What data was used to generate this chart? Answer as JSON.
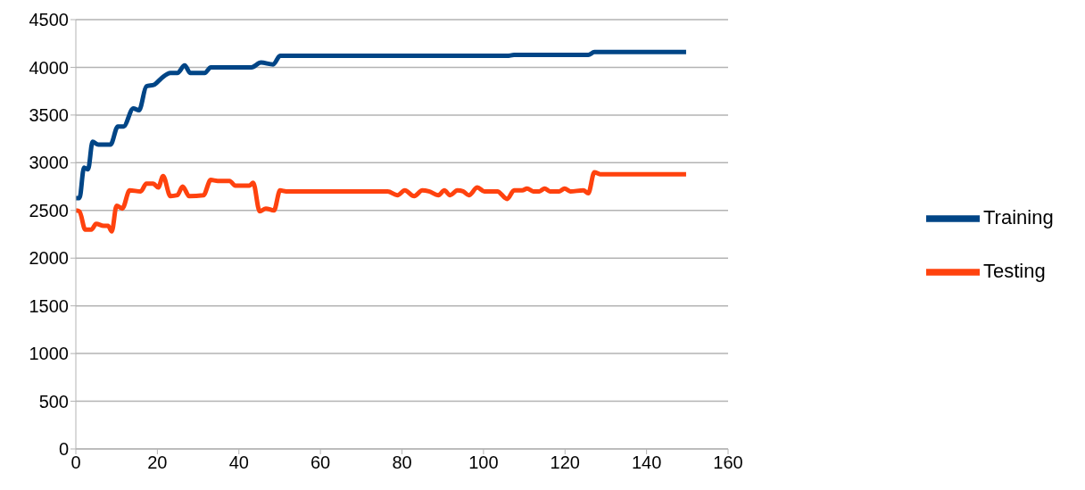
{
  "chart_data": {
    "type": "line",
    "xlim": [
      0,
      160
    ],
    "xticks": [
      0,
      20,
      40,
      60,
      80,
      100,
      120,
      140,
      160
    ],
    "ylim": [
      0,
      4500
    ],
    "yticks": [
      0,
      500,
      1000,
      1500,
      2000,
      2500,
      3000,
      3500,
      4000,
      4500
    ],
    "grid": "y",
    "legend": "right",
    "marker": "none",
    "line_style": "solid",
    "series": [
      {
        "name": "Training",
        "color": "#004586",
        "x": [
          0,
          0.9,
          2,
          3,
          4.1,
          5.5,
          7,
          8.5,
          10.3,
          11.7,
          14.1,
          15.5,
          17.3,
          19.3,
          21.1,
          23.2,
          24.9,
          26.7,
          28.1,
          31.6,
          33.1,
          43.1,
          45.4,
          48.4,
          50.1,
          60,
          80,
          100,
          105.8,
          107.5,
          125.7,
          127.2,
          149.7
        ],
        "values": [
          2630,
          2630,
          2950,
          2930,
          3220,
          3190,
          3190,
          3190,
          3380,
          3380,
          3570,
          3550,
          3800,
          3820,
          3890,
          3940,
          3940,
          4020,
          3940,
          3940,
          4000,
          4000,
          4050,
          4030,
          4120,
          4120,
          4120,
          4120,
          4120,
          4130,
          4130,
          4160,
          4160
        ]
      },
      {
        "name": "Testing",
        "color": "#ff420e",
        "x": [
          0,
          0.9,
          2.3,
          3.8,
          5,
          6.8,
          7.9,
          8.8,
          10,
          11.4,
          13.2,
          15.9,
          17.3,
          19,
          20.2,
          21.4,
          23.2,
          24.9,
          26.2,
          27.8,
          31.3,
          33.1,
          34.8,
          37.7,
          39.1,
          42.6,
          43.5,
          45.1,
          46.6,
          48.6,
          50.1,
          51.6,
          60,
          76.5,
          78.9,
          80.7,
          83,
          85,
          86.6,
          88.9,
          90.4,
          91.8,
          93.6,
          95,
          96.4,
          98.5,
          100.2,
          103.4,
          105.8,
          107.5,
          109.5,
          110.7,
          112.2,
          113.7,
          115,
          116.3,
          118.6,
          119.9,
          121.3,
          124.5,
          125.7,
          127.2,
          128.6,
          149.7
        ],
        "values": [
          2500,
          2490,
          2300,
          2300,
          2360,
          2340,
          2340,
          2280,
          2550,
          2520,
          2710,
          2700,
          2780,
          2780,
          2740,
          2860,
          2650,
          2660,
          2750,
          2650,
          2660,
          2820,
          2810,
          2810,
          2760,
          2760,
          2790,
          2490,
          2520,
          2500,
          2710,
          2700,
          2700,
          2700,
          2660,
          2710,
          2650,
          2710,
          2700,
          2660,
          2710,
          2660,
          2710,
          2700,
          2660,
          2740,
          2700,
          2700,
          2620,
          2710,
          2710,
          2730,
          2700,
          2700,
          2730,
          2700,
          2700,
          2730,
          2700,
          2710,
          2680,
          2900,
          2880,
          2880
        ]
      }
    ]
  }
}
